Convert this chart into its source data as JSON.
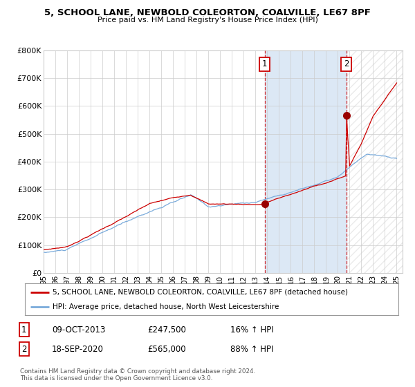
{
  "title1": "5, SCHOOL LANE, NEWBOLD COLEORTON, COALVILLE, LE67 8PF",
  "title2": "Price paid vs. HM Land Registry's House Price Index (HPI)",
  "ylim": [
    0,
    800000
  ],
  "yticks": [
    0,
    100000,
    200000,
    300000,
    400000,
    500000,
    600000,
    700000,
    800000
  ],
  "ytick_labels": [
    "£0",
    "£100K",
    "£200K",
    "£300K",
    "£400K",
    "£500K",
    "£600K",
    "£700K",
    "£800K"
  ],
  "x_start_year": 1995,
  "x_end_year": 2025,
  "red_line_color": "#cc0000",
  "blue_line_color": "#7aabdb",
  "shade_color": "#dce8f5",
  "dashed_line_color": "#cc0000",
  "marker_color": "#990000",
  "transaction1_year": 2013.78,
  "transaction1_price": 247500,
  "transaction2_year": 2020.72,
  "transaction2_price": 565000,
  "legend_red": "5, SCHOOL LANE, NEWBOLD COLEORTON, COALVILLE, LE67 8PF (detached house)",
  "legend_blue": "HPI: Average price, detached house, North West Leicestershire",
  "table_row1": [
    "1",
    "09-OCT-2013",
    "£247,500",
    "16% ↑ HPI"
  ],
  "table_row2": [
    "2",
    "18-SEP-2020",
    "£565,000",
    "88% ↑ HPI"
  ],
  "footnote1": "Contains HM Land Registry data © Crown copyright and database right 2024.",
  "footnote2": "This data is licensed under the Open Government Licence v3.0.",
  "bg_color": "#ffffff",
  "plot_bg_color": "#ffffff",
  "grid_color": "#cccccc",
  "hatch_color": "#cccccc"
}
